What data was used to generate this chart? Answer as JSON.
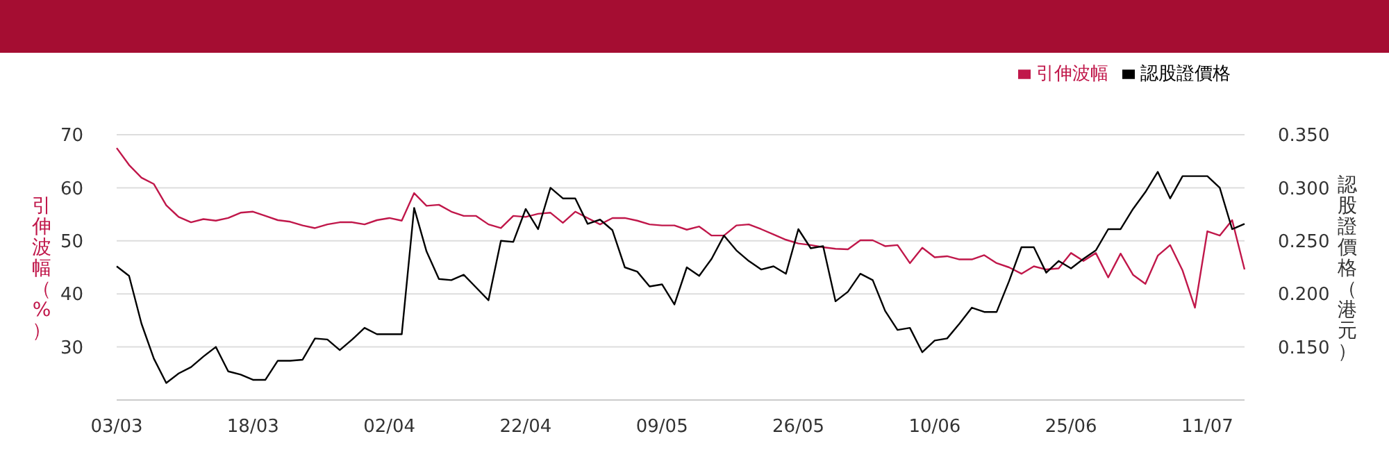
{
  "chart_data": {
    "type": "line",
    "categories": [
      "03/03",
      null,
      null,
      null,
      null,
      null,
      null,
      null,
      null,
      null,
      null,
      "18/03",
      null,
      null,
      null,
      null,
      null,
      null,
      null,
      null,
      null,
      null,
      "02/04",
      null,
      null,
      null,
      null,
      null,
      null,
      null,
      null,
      null,
      null,
      "22/04",
      null,
      null,
      null,
      null,
      null,
      null,
      null,
      null,
      null,
      null,
      "09/05",
      null,
      null,
      null,
      null,
      null,
      null,
      null,
      null,
      null,
      null,
      "26/05",
      null,
      null,
      null,
      null,
      null,
      null,
      null,
      null,
      null,
      null,
      "10/06",
      null,
      null,
      null,
      null,
      null,
      null,
      null,
      null,
      null,
      null,
      "25/06",
      null,
      null,
      null,
      null,
      null,
      null,
      null,
      null,
      null,
      null,
      "11/07",
      null,
      null,
      null
    ],
    "series": [
      {
        "name": "引伸波幅",
        "color": "#c0174a",
        "values": [
          67.5,
          64.3,
          61.9,
          60.7,
          56.7,
          54.5,
          53.5,
          54.1,
          53.8,
          54.3,
          55.3,
          55.5,
          54.7,
          53.9,
          53.6,
          52.9,
          52.4,
          53.1,
          53.5,
          53.5,
          53.1,
          53.9,
          54.3,
          53.8,
          59.0,
          56.6,
          56.8,
          55.5,
          54.7,
          54.7,
          53.1,
          52.4,
          54.7,
          54.5,
          55.1,
          55.3,
          53.4,
          55.5,
          54.3,
          53.1,
          54.3,
          54.3,
          53.8,
          53.1,
          52.9,
          52.9,
          52.1,
          52.7,
          51.0,
          51.0,
          52.9,
          53.1,
          52.2,
          51.2,
          50.2,
          49.5,
          49.2,
          48.8,
          48.5,
          48.4,
          50.1,
          50.1,
          49.0,
          49.2,
          45.8,
          48.7,
          46.9,
          47.1,
          46.5,
          46.5,
          47.3,
          45.8,
          45.0,
          43.8,
          45.2,
          44.6,
          44.8,
          47.7,
          46.2,
          47.7,
          43.1,
          47.6,
          43.6,
          41.9,
          47.2,
          49.2,
          44.4,
          37.4,
          51.8,
          51.0,
          53.9,
          44.6
        ]
      },
      {
        "name": "認股證價格",
        "color": "#000000",
        "axis": "y2",
        "values": [
          0.226,
          0.217,
          0.172,
          0.139,
          0.116,
          0.125,
          0.131,
          0.141,
          0.15,
          0.127,
          0.124,
          0.119,
          0.119,
          0.137,
          0.137,
          0.138,
          0.158,
          0.157,
          0.147,
          0.157,
          0.168,
          0.162,
          0.162,
          0.162,
          0.281,
          0.24,
          0.214,
          0.213,
          0.218,
          0.206,
          0.194,
          0.25,
          0.249,
          0.28,
          0.261,
          0.3,
          0.29,
          0.29,
          0.266,
          0.27,
          0.26,
          0.225,
          0.221,
          0.207,
          0.209,
          0.19,
          0.225,
          0.217,
          0.233,
          0.255,
          0.241,
          0.231,
          0.223,
          0.226,
          0.219,
          0.261,
          0.243,
          0.245,
          0.193,
          0.202,
          0.219,
          0.213,
          0.184,
          0.166,
          0.168,
          0.145,
          0.156,
          0.158,
          0.172,
          0.187,
          0.183,
          0.183,
          0.212,
          0.244,
          0.244,
          0.22,
          0.231,
          0.224,
          0.233,
          0.241,
          0.261,
          0.261,
          0.28,
          0.296,
          0.315,
          0.29,
          0.311,
          0.311,
          0.311,
          0.3,
          0.261,
          0.266
        ]
      }
    ],
    "ylabel": "引伸波幅（%）",
    "y2label": "認股證價格（港元）",
    "ylim": [
      20,
      70
    ],
    "yticks": [
      30,
      40,
      50,
      60,
      70
    ],
    "y2lim": [
      0.1,
      0.35
    ],
    "y2ticks": [
      {
        "value": 0.15,
        "label": "0.150"
      },
      {
        "value": 0.2,
        "label": "0.200"
      },
      {
        "value": 0.25,
        "label": "0.250"
      },
      {
        "value": 0.3,
        "label": "0.300"
      },
      {
        "value": 0.35,
        "label": "0.350"
      }
    ],
    "grid": "y",
    "legend": "top right",
    "marker": "none",
    "line_style": "solid"
  }
}
